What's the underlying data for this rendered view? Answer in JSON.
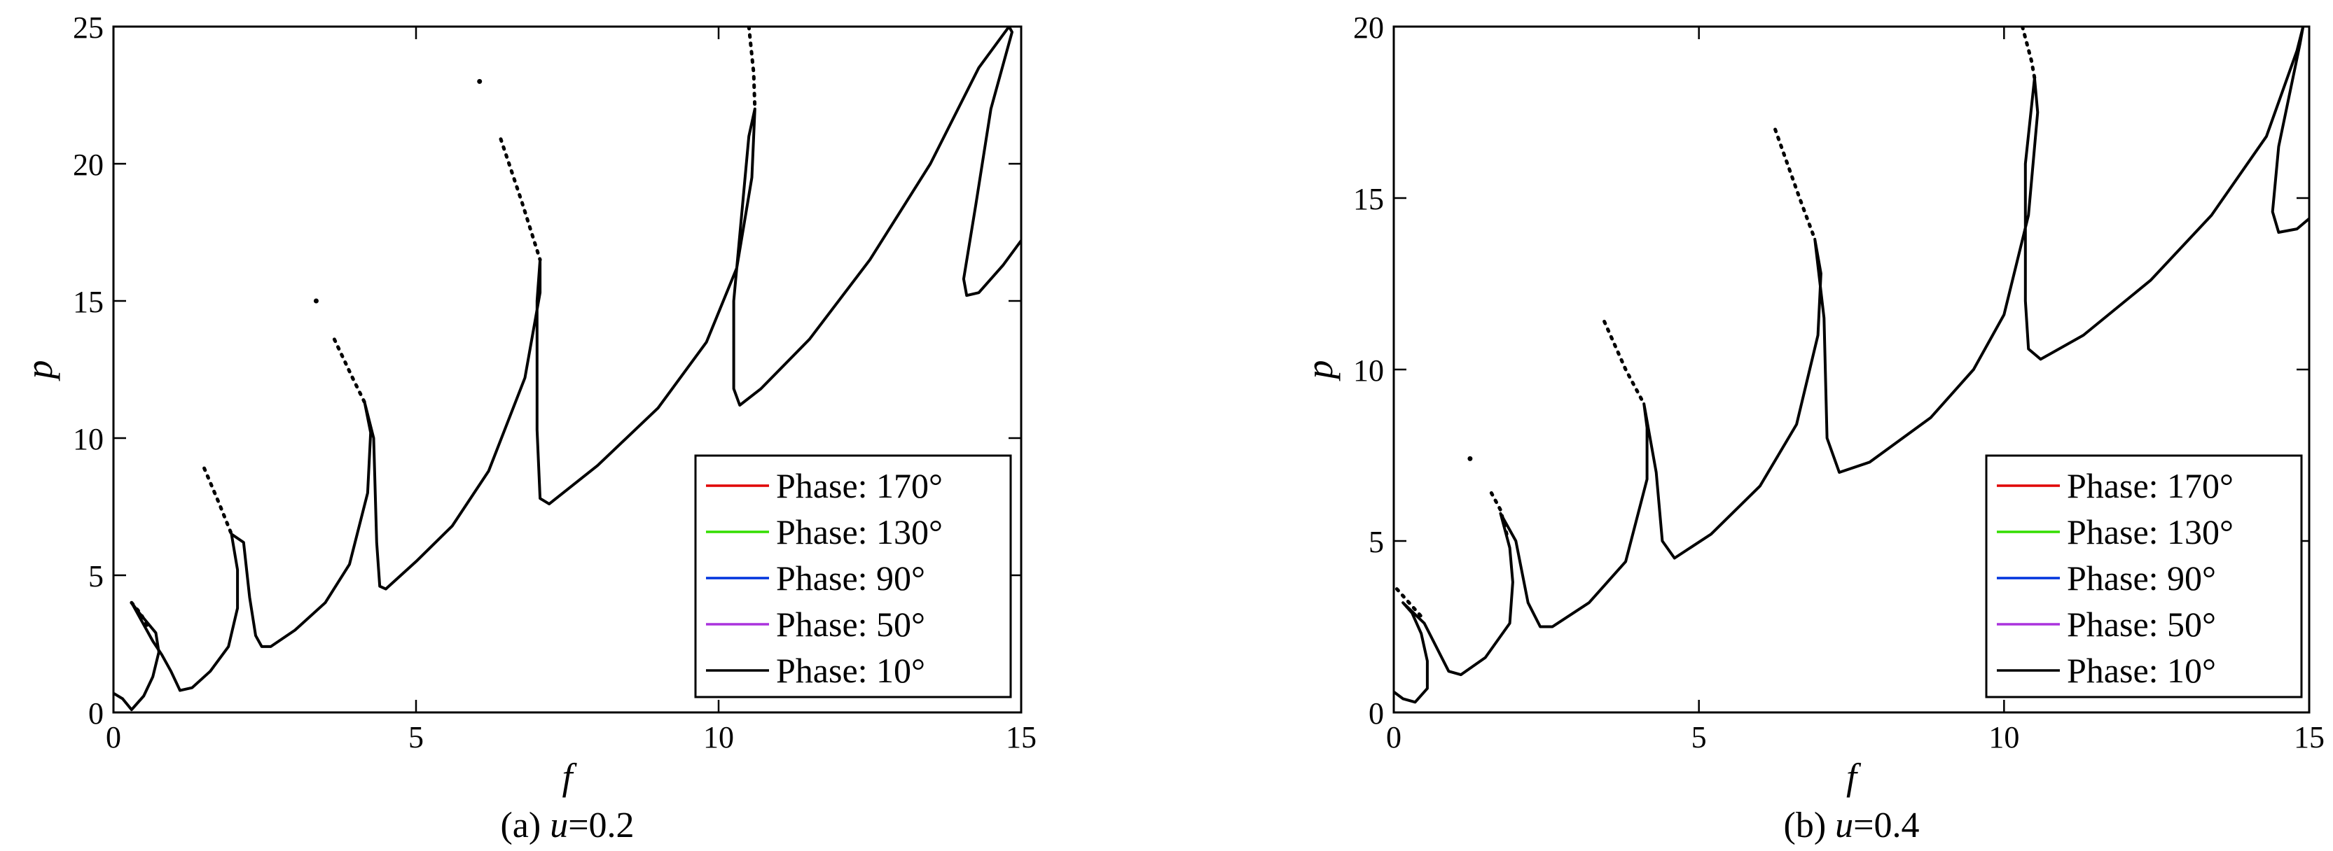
{
  "chart_data": [
    {
      "type": "line",
      "caption_prefix": "(a) ",
      "caption_var": "u",
      "caption_value": "=0.2",
      "xlabel": "f",
      "ylabel": "p",
      "xlim": [
        0,
        15
      ],
      "ylim": [
        0,
        25
      ],
      "xticks": [
        "0",
        "5",
        "10",
        "15"
      ],
      "yticks": [
        "0",
        "5",
        "10",
        "15",
        "20",
        "25"
      ],
      "grid": false,
      "legend_position": "bottom-right",
      "legend": [
        {
          "label": "Phase: 170°",
          "color": "#e00000"
        },
        {
          "label": "Phase: 130°",
          "color": "#33dd00"
        },
        {
          "label": "Phase: 90°",
          "color": "#0033dd"
        },
        {
          "label": "Phase: 50°",
          "color": "#aa33dd"
        },
        {
          "label": "Phase: 10°",
          "color": "#000000"
        }
      ],
      "series": [
        {
          "points": [
            [
              0,
              0.7
            ],
            [
              0.15,
              0.5
            ],
            [
              0.3,
              0.1
            ],
            [
              0.5,
              0.6
            ],
            [
              0.65,
              1.3
            ],
            [
              0.75,
              2.2
            ],
            [
              0.7,
              2.9
            ],
            [
              0.55,
              3.3
            ],
            [
              0.4,
              3.7
            ],
            [
              0.3,
              4.0
            ],
            [
              0.65,
              2.6
            ],
            [
              0.8,
              2.1
            ],
            [
              0.95,
              1.5
            ],
            [
              1.1,
              0.8
            ],
            [
              1.3,
              0.9
            ],
            [
              1.6,
              1.5
            ],
            [
              1.9,
              2.4
            ],
            [
              2.05,
              3.8
            ],
            [
              2.05,
              5.2
            ],
            [
              1.95,
              6.5
            ],
            [
              2.15,
              6.2
            ],
            [
              2.25,
              4.2
            ],
            [
              2.35,
              2.8
            ],
            [
              2.45,
              2.4
            ],
            [
              2.6,
              2.4
            ],
            [
              3.0,
              3.0
            ],
            [
              3.5,
              4.0
            ],
            [
              3.9,
              5.4
            ],
            [
              4.2,
              8.0
            ],
            [
              4.25,
              10.2
            ],
            [
              4.15,
              11.3
            ],
            [
              4.3,
              10.0
            ],
            [
              4.35,
              6.2
            ],
            [
              4.4,
              4.6
            ],
            [
              4.5,
              4.5
            ],
            [
              5.0,
              5.5
            ],
            [
              5.6,
              6.8
            ],
            [
              6.2,
              8.8
            ],
            [
              6.8,
              12.2
            ],
            [
              7.05,
              15.3
            ],
            [
              7.05,
              16.5
            ],
            [
              7.0,
              15.0
            ],
            [
              7.0,
              10.3
            ],
            [
              7.05,
              7.8
            ],
            [
              7.2,
              7.6
            ],
            [
              8.0,
              9.0
            ],
            [
              9.0,
              11.1
            ],
            [
              9.8,
              13.5
            ],
            [
              10.3,
              16.2
            ],
            [
              10.55,
              19.5
            ],
            [
              10.6,
              22.0
            ],
            [
              10.5,
              21.0
            ],
            [
              10.25,
              15.0
            ],
            [
              10.25,
              11.8
            ],
            [
              10.35,
              11.2
            ],
            [
              10.7,
              11.8
            ],
            [
              11.5,
              13.6
            ],
            [
              12.5,
              16.5
            ],
            [
              13.5,
              20.0
            ],
            [
              14.3,
              23.5
            ],
            [
              14.8,
              25.0
            ],
            [
              14.85,
              24.8
            ],
            [
              14.5,
              22.0
            ],
            [
              14.25,
              18.5
            ],
            [
              14.05,
              15.8
            ],
            [
              14.1,
              15.2
            ],
            [
              14.3,
              15.3
            ],
            [
              14.7,
              16.3
            ],
            [
              15.0,
              17.2
            ]
          ]
        }
      ],
      "dot_tails": [
        {
          "points": [
            [
              0.3,
              4.0
            ],
            [
              0.45,
              3.6
            ],
            [
              0.6,
              3.0
            ]
          ]
        },
        {
          "points": [
            [
              1.5,
              8.9
            ],
            [
              1.75,
              7.6
            ],
            [
              1.95,
              6.5
            ]
          ]
        },
        {
          "points": [
            [
              3.65,
              13.6
            ],
            [
              3.95,
              12.2
            ],
            [
              4.15,
              11.3
            ]
          ]
        },
        {
          "points": [
            [
              6.4,
              20.9
            ],
            [
              6.75,
              18.6
            ],
            [
              7.05,
              16.5
            ]
          ]
        },
        {
          "points": [
            [
              10.5,
              25.0
            ],
            [
              10.58,
              23.3
            ],
            [
              10.6,
              22.0
            ]
          ]
        }
      ],
      "isolated_points": [
        [
          3.35,
          15.0
        ],
        [
          6.05,
          23.0
        ]
      ]
    },
    {
      "type": "line",
      "caption_prefix": "(b) ",
      "caption_var": "u",
      "caption_value": "=0.4",
      "xlabel": "f",
      "ylabel": "p",
      "xlim": [
        0,
        15
      ],
      "ylim": [
        0,
        20
      ],
      "xticks": [
        "0",
        "5",
        "10",
        "15"
      ],
      "yticks": [
        "0",
        "5",
        "10",
        "15",
        "20"
      ],
      "grid": false,
      "legend_position": "bottom-right",
      "legend": [
        {
          "label": "Phase: 170°",
          "color": "#e00000"
        },
        {
          "label": "Phase: 130°",
          "color": "#33dd00"
        },
        {
          "label": "Phase: 90°",
          "color": "#0033dd"
        },
        {
          "label": "Phase: 50°",
          "color": "#aa33dd"
        },
        {
          "label": "Phase: 10°",
          "color": "#000000"
        }
      ],
      "series": [
        {
          "points": [
            [
              0,
              0.6
            ],
            [
              0.15,
              0.4
            ],
            [
              0.35,
              0.3
            ],
            [
              0.55,
              0.7
            ],
            [
              0.55,
              1.5
            ],
            [
              0.45,
              2.3
            ],
            [
              0.3,
              2.9
            ],
            [
              0.15,
              3.2
            ],
            [
              0.5,
              2.6
            ],
            [
              0.7,
              1.9
            ],
            [
              0.9,
              1.2
            ],
            [
              1.1,
              1.1
            ],
            [
              1.5,
              1.6
            ],
            [
              1.9,
              2.6
            ],
            [
              1.95,
              3.8
            ],
            [
              1.9,
              4.8
            ],
            [
              1.75,
              5.8
            ],
            [
              2.0,
              5.0
            ],
            [
              2.2,
              3.2
            ],
            [
              2.4,
              2.5
            ],
            [
              2.6,
              2.5
            ],
            [
              3.2,
              3.2
            ],
            [
              3.8,
              4.4
            ],
            [
              4.15,
              6.8
            ],
            [
              4.15,
              8.3
            ],
            [
              4.1,
              9.0
            ],
            [
              4.3,
              7.0
            ],
            [
              4.4,
              5.0
            ],
            [
              4.6,
              4.5
            ],
            [
              5.2,
              5.2
            ],
            [
              6.0,
              6.6
            ],
            [
              6.6,
              8.4
            ],
            [
              6.95,
              11.0
            ],
            [
              7.0,
              12.8
            ],
            [
              6.9,
              13.8
            ],
            [
              7.05,
              11.5
            ],
            [
              7.1,
              8.0
            ],
            [
              7.3,
              7.0
            ],
            [
              7.8,
              7.3
            ],
            [
              8.8,
              8.6
            ],
            [
              9.5,
              10.0
            ],
            [
              10.0,
              11.6
            ],
            [
              10.4,
              14.5
            ],
            [
              10.55,
              17.5
            ],
            [
              10.5,
              18.5
            ],
            [
              10.35,
              16.0
            ],
            [
              10.35,
              12.0
            ],
            [
              10.4,
              10.6
            ],
            [
              10.6,
              10.3
            ],
            [
              11.3,
              11.0
            ],
            [
              12.4,
              12.6
            ],
            [
              13.4,
              14.5
            ],
            [
              14.3,
              16.8
            ],
            [
              14.8,
              19.3
            ],
            [
              14.9,
              20.0
            ],
            [
              14.85,
              19.5
            ],
            [
              14.5,
              16.5
            ],
            [
              14.4,
              14.6
            ],
            [
              14.5,
              14.0
            ],
            [
              14.8,
              14.1
            ],
            [
              15.0,
              14.4
            ]
          ]
        }
      ],
      "dot_tails": [
        {
          "points": [
            [
              0.05,
              3.6
            ],
            [
              0.25,
              3.2
            ],
            [
              0.45,
              2.8
            ]
          ]
        },
        {
          "points": [
            [
              1.6,
              6.4
            ],
            [
              1.75,
              5.9
            ],
            [
              1.85,
              5.2
            ]
          ]
        },
        {
          "points": [
            [
              3.45,
              11.4
            ],
            [
              3.8,
              10.0
            ],
            [
              4.1,
              9.0
            ]
          ]
        },
        {
          "points": [
            [
              6.25,
              17.0
            ],
            [
              6.65,
              15.0
            ],
            [
              6.9,
              13.8
            ]
          ]
        },
        {
          "points": [
            [
              10.3,
              20.0
            ],
            [
              10.45,
              19.0
            ],
            [
              10.5,
              18.5
            ]
          ]
        }
      ],
      "isolated_points": [
        [
          1.25,
          7.4
        ]
      ]
    }
  ]
}
